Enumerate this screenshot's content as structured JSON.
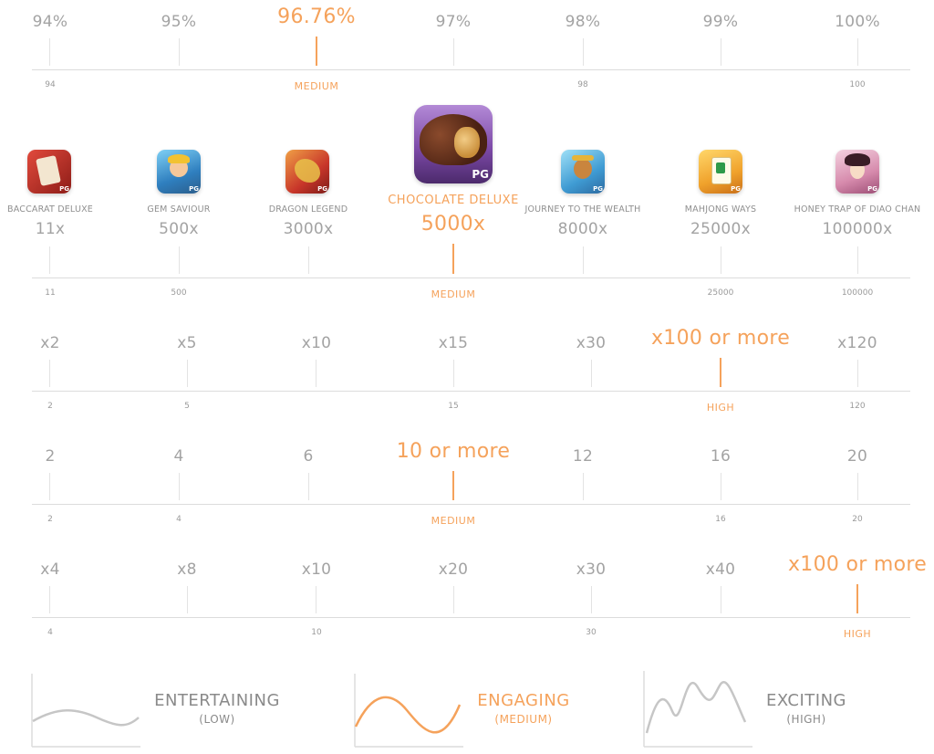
{
  "rtp": {
    "values": [
      "94%",
      "95%",
      "96.76%",
      "97%",
      "98%",
      "99%",
      "100%"
    ],
    "axis_labels": [
      "94",
      "98",
      "100"
    ],
    "level": "MEDIUM"
  },
  "max_win": {
    "games": [
      {
        "name": "BACCARAT DELUXE",
        "icon": "baccarat-deluxe-icon",
        "color": "#c8332d",
        "value": "11x"
      },
      {
        "name": "GEM SAVIOUR",
        "icon": "gem-saviour-icon",
        "color": "#4aa3d8",
        "value": "500x"
      },
      {
        "name": "DRAGON LEGEND",
        "icon": "dragon-legend-icon",
        "color": "#d6452a",
        "value": "3000x"
      },
      {
        "name": "CHOCOLATE DELUXE",
        "icon": "chocolate-deluxe-icon",
        "color": "#6b3a22",
        "value": "5000x"
      },
      {
        "name": "JOURNEY TO THE WEALTH",
        "icon": "journey-to-the-wealth-icon",
        "color": "#3fa4d6",
        "value": "8000x"
      },
      {
        "name": "MAHJONG WAYS",
        "icon": "mahjong-ways-icon",
        "color": "#e89a2a",
        "value": "25000x"
      },
      {
        "name": "HONEY TRAP OF DIAO CHAN",
        "icon": "honey-trap-of-diao-chan-icon",
        "color": "#d97aa8",
        "value": "100000x"
      }
    ],
    "axis_labels": [
      "11",
      "500",
      "25000",
      "100000"
    ],
    "level": "MEDIUM",
    "pg_label": "PG"
  },
  "multiplier": {
    "values": [
      "x2",
      "x5",
      "x10",
      "x15",
      "x30",
      "x100 or more",
      "x120"
    ],
    "axis_labels": [
      "2",
      "5",
      "15",
      "120"
    ],
    "level": "HIGH"
  },
  "paylines": {
    "values": [
      "2",
      "4",
      "6",
      "10 or more",
      "12",
      "16",
      "20"
    ],
    "axis_labels": [
      "2",
      "4",
      "16",
      "20"
    ],
    "level": "MEDIUM"
  },
  "bonus": {
    "values": [
      "x4",
      "x8",
      "x10",
      "x20",
      "x30",
      "x40",
      "x100 or more"
    ],
    "axis_labels": [
      "4",
      "10",
      "30"
    ],
    "level": "HIGH"
  },
  "volatility": [
    {
      "title": "ENTERTAINING",
      "sub": "(LOW)"
    },
    {
      "title": "ENGAGING",
      "sub": "(MEDIUM)"
    },
    {
      "title": "EXCITING",
      "sub": "(HIGH)"
    }
  ],
  "colors": {
    "accent": "#f5a25b",
    "text": "#a3a3a3",
    "line": "#dcdcdc"
  }
}
